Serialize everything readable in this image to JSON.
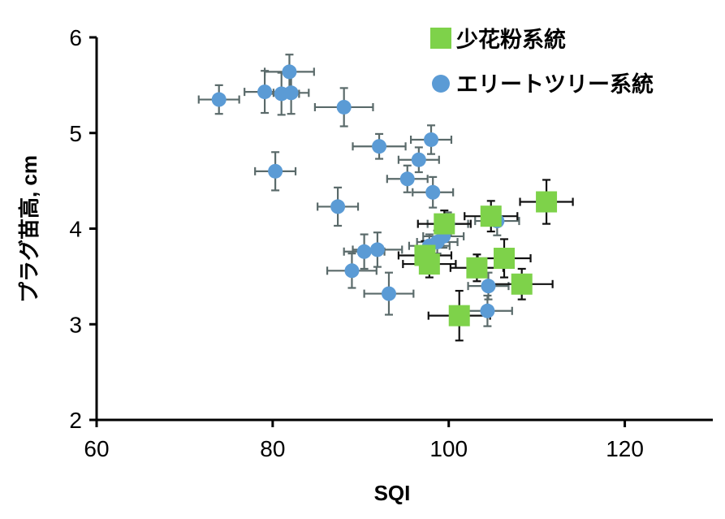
{
  "chart_data": {
    "type": "scatter",
    "title": "",
    "xlabel": "SQI",
    "ylabel": "プラグ苗高, cm",
    "xlim": [
      60,
      130
    ],
    "ylim": [
      2,
      6
    ],
    "xticks": [
      60,
      80,
      100,
      120
    ],
    "yticks": [
      2,
      3,
      4,
      5,
      6
    ],
    "legend_position": "top-right",
    "series": [
      {
        "name": "少花粉系統",
        "marker": "square",
        "color": "#7ed24a",
        "error_color": "#111111",
        "points": [
          {
            "x": 97.3,
            "y": 3.72,
            "xerr": 3.0,
            "yerr": 0.15
          },
          {
            "x": 97.8,
            "y": 3.63,
            "xerr": 3.0,
            "yerr": 0.14
          },
          {
            "x": 99.5,
            "y": 4.05,
            "xerr": 3.0,
            "yerr": 0.14
          },
          {
            "x": 101.2,
            "y": 3.09,
            "xerr": 3.5,
            "yerr": 0.26
          },
          {
            "x": 103.2,
            "y": 3.59,
            "xerr": 3.0,
            "yerr": 0.14
          },
          {
            "x": 104.8,
            "y": 4.13,
            "xerr": 3.0,
            "yerr": 0.16
          },
          {
            "x": 106.3,
            "y": 3.69,
            "xerr": 3.0,
            "yerr": 0.2
          },
          {
            "x": 108.3,
            "y": 3.42,
            "xerr": 3.5,
            "yerr": 0.16
          },
          {
            "x": 111.1,
            "y": 4.28,
            "xerr": 3.0,
            "yerr": 0.23
          }
        ]
      },
      {
        "name": "エリートツリー系統",
        "marker": "circle",
        "color": "#5b9bd5",
        "error_color": "#5a6a6a",
        "points": [
          {
            "x": 73.9,
            "y": 5.35,
            "xerr": 2.3,
            "yerr": 0.15
          },
          {
            "x": 79.1,
            "y": 5.43,
            "xerr": 2.3,
            "yerr": 0.22
          },
          {
            "x": 81.0,
            "y": 5.41,
            "xerr": 2.0,
            "yerr": 0.22
          },
          {
            "x": 81.9,
            "y": 5.64,
            "xerr": 2.8,
            "yerr": 0.18
          },
          {
            "x": 82.1,
            "y": 5.42,
            "xerr": 2.0,
            "yerr": 0.22
          },
          {
            "x": 80.3,
            "y": 4.6,
            "xerr": 2.3,
            "yerr": 0.2
          },
          {
            "x": 88.1,
            "y": 5.27,
            "xerr": 3.3,
            "yerr": 0.2
          },
          {
            "x": 87.4,
            "y": 4.23,
            "xerr": 2.3,
            "yerr": 0.2
          },
          {
            "x": 92.1,
            "y": 4.86,
            "xerr": 3.0,
            "yerr": 0.13
          },
          {
            "x": 96.6,
            "y": 4.72,
            "xerr": 2.3,
            "yerr": 0.13
          },
          {
            "x": 98.0,
            "y": 4.93,
            "xerr": 2.3,
            "yerr": 0.15
          },
          {
            "x": 95.3,
            "y": 4.52,
            "xerr": 2.3,
            "yerr": 0.14
          },
          {
            "x": 98.2,
            "y": 4.38,
            "xerr": 2.3,
            "yerr": 0.16
          },
          {
            "x": 90.4,
            "y": 3.76,
            "xerr": 2.3,
            "yerr": 0.18
          },
          {
            "x": 91.9,
            "y": 3.78,
            "xerr": 2.8,
            "yerr": 0.18
          },
          {
            "x": 89.0,
            "y": 3.56,
            "xerr": 2.8,
            "yerr": 0.18
          },
          {
            "x": 93.2,
            "y": 3.32,
            "xerr": 2.8,
            "yerr": 0.22
          },
          {
            "x": 97.8,
            "y": 3.82,
            "xerr": 2.3,
            "yerr": 0.12
          },
          {
            "x": 98.7,
            "y": 3.86,
            "xerr": 2.3,
            "yerr": 0.12
          },
          {
            "x": 99.4,
            "y": 3.92,
            "xerr": 2.3,
            "yerr": 0.12
          },
          {
            "x": 99.9,
            "y": 4.05,
            "xerr": 2.3,
            "yerr": 0.12
          },
          {
            "x": 105.5,
            "y": 4.08,
            "xerr": 2.5,
            "yerr": 0.15
          },
          {
            "x": 104.5,
            "y": 3.4,
            "xerr": 2.3,
            "yerr": 0.14
          },
          {
            "x": 104.4,
            "y": 3.14,
            "xerr": 2.8,
            "yerr": 0.16
          }
        ]
      }
    ]
  }
}
